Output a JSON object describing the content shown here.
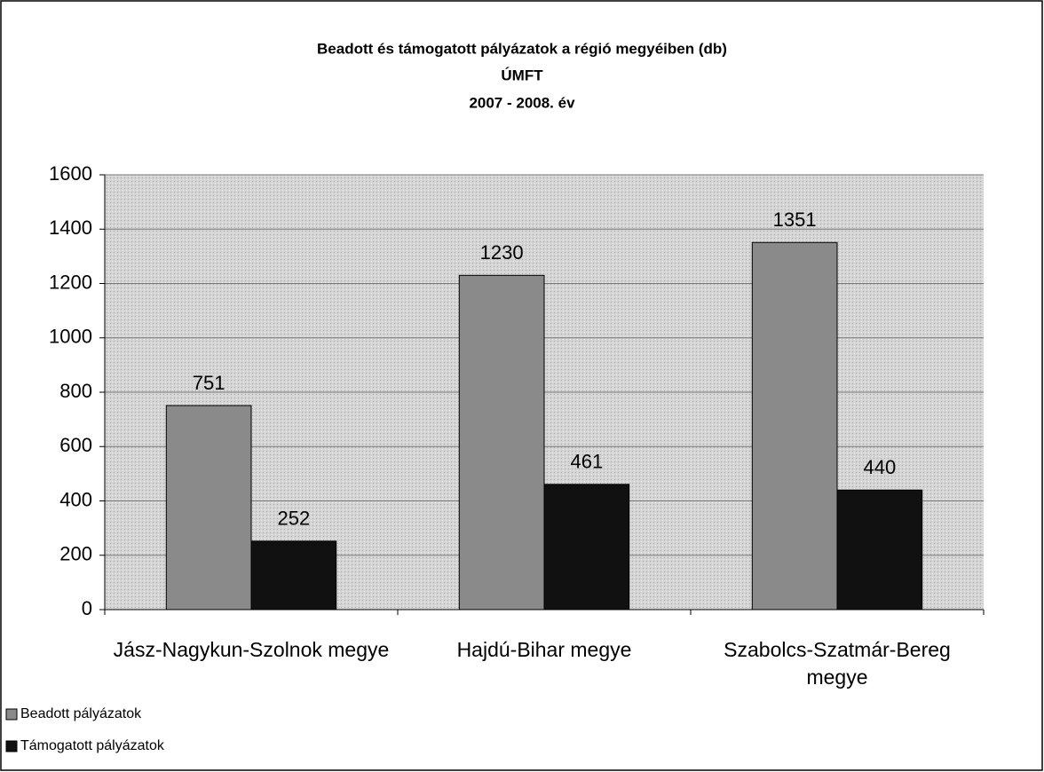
{
  "chart_data": {
    "type": "bar",
    "title": "Beadott és támogatott pályázatok a régió megyéiben (db)",
    "subtitle": [
      "ÚMFT",
      "2007 - 2008. év"
    ],
    "categories": [
      "Jász-Nagykun-Szolnok megye",
      "Hajdú-Bihar megye",
      "Szabolcs-Szatmár-Bereg megye"
    ],
    "series": [
      {
        "name": "Beadott pályázatok",
        "color": "#8a8a8a",
        "values": [
          751,
          1230,
          1351
        ]
      },
      {
        "name": "Támogatott pályázatok",
        "color": "#111111",
        "values": [
          252,
          461,
          440
        ]
      }
    ],
    "ylim": [
      0,
      1600
    ],
    "yticks": [
      0,
      200,
      400,
      600,
      800,
      1000,
      1200,
      1400,
      1600
    ],
    "grid": true,
    "legend": "bottom-left"
  }
}
